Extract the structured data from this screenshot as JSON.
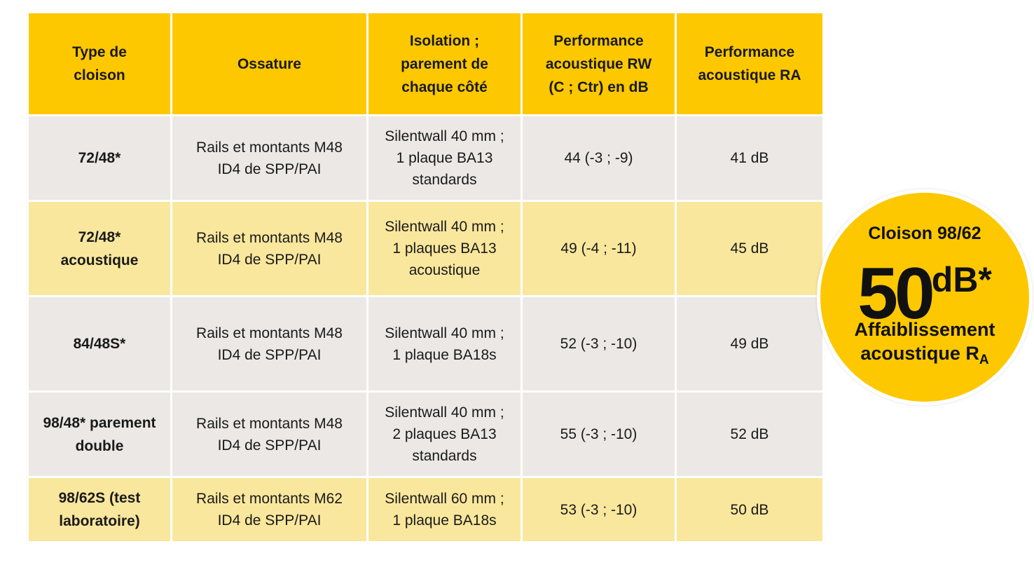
{
  "table": {
    "headers": [
      [
        "Type de",
        "cloison"
      ],
      [
        "Ossature"
      ],
      [
        "Isolation ;",
        "parement de",
        "chaque côté"
      ],
      [
        "Performance",
        "acoustique  RW",
        "(C ; Ctr)  en dB"
      ],
      [
        "Performance",
        "acoustique  RA"
      ]
    ],
    "rows": [
      {
        "type": [
          "72/48*"
        ],
        "ossature": [
          "Rails et montants M48",
          "ID4 de SPP/PAI"
        ],
        "isolation": [
          "Silentwall 40 mm ;",
          "1 plaque BA13",
          "standards"
        ],
        "rw": "44 (-3 ; -9)",
        "ra": "41 dB"
      },
      {
        "type": [
          "72/48*",
          "acoustique"
        ],
        "ossature": [
          "Rails et montants M48",
          "ID4 de SPP/PAI"
        ],
        "isolation": [
          "Silentwall 40 mm ;",
          "1 plaques BA13",
          "acoustique"
        ],
        "rw": "49 (-4 ; -11)",
        "ra": "45 dB"
      },
      {
        "type": [
          "84/48S*"
        ],
        "ossature": [
          "Rails et montants M48",
          "ID4 de SPP/PAI"
        ],
        "isolation": [
          "Silentwall 40 mm ;",
          "1 plaque BA18s"
        ],
        "rw": "52 (-3 ; -10)",
        "ra": "49 dB"
      },
      {
        "type": [
          "98/48* parement",
          "double"
        ],
        "ossature": [
          "Rails et montants M48",
          "ID4 de SPP/PAI"
        ],
        "isolation": [
          "Silentwall 40 mm ;",
          "2 plaques BA13",
          "standards"
        ],
        "rw": "55 (-3 ; -10)",
        "ra": "52 dB"
      },
      {
        "type": [
          "98/62S (test",
          "laboratoire)"
        ],
        "ossature": [
          "Rails et montants M62",
          "ID4 de SPP/PAI"
        ],
        "isolation": [
          "Silentwall 60 mm ;",
          "1 plaque BA18s"
        ],
        "rw": "53 (-3 ; -10)",
        "ra": "50 dB"
      }
    ]
  },
  "badge": {
    "title": "Cloison 98/62",
    "value": "50",
    "unit": "dB*",
    "line1": "Affaiblissement",
    "line2": "acoustique R",
    "line2_sub": "A"
  },
  "colors": {
    "header_yellow": "#fdc800",
    "row_grey": "#ebe8e5",
    "row_cream": "#f9e79d"
  }
}
